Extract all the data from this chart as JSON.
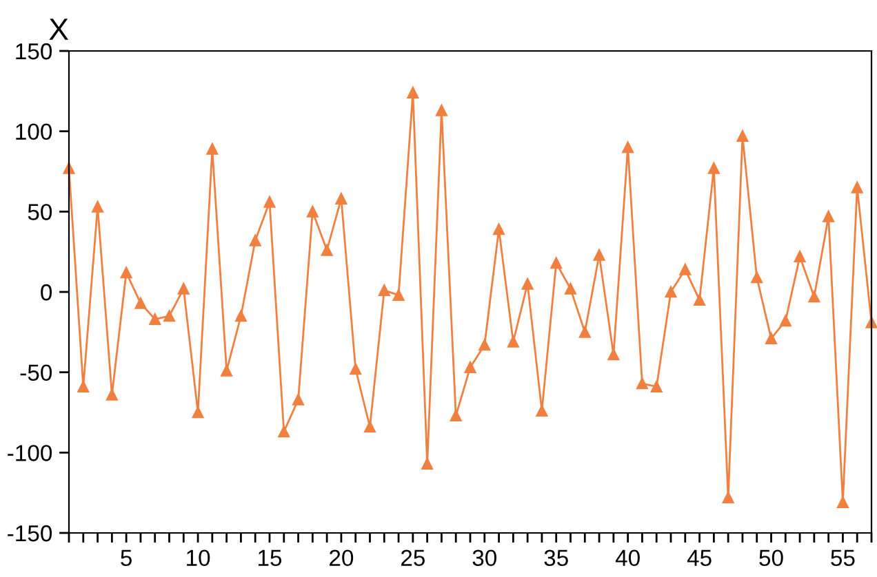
{
  "chart_data": {
    "type": "line",
    "title": "X",
    "x": [
      1,
      2,
      3,
      4,
      5,
      6,
      7,
      8,
      9,
      10,
      11,
      12,
      13,
      14,
      15,
      16,
      17,
      18,
      19,
      20,
      21,
      22,
      23,
      24,
      25,
      26,
      27,
      28,
      29,
      30,
      31,
      32,
      33,
      34,
      35,
      36,
      37,
      38,
      39,
      40,
      41,
      42,
      43,
      44,
      45,
      46,
      47,
      48,
      49,
      50,
      51,
      52,
      53,
      54,
      55,
      56,
      57
    ],
    "series": [
      {
        "color": "#f08040",
        "values": [
          77,
          -59,
          53,
          -64,
          12,
          -7,
          -17,
          -15,
          2,
          -75,
          89,
          -49,
          -15,
          32,
          56,
          -87,
          -67,
          50,
          26,
          58,
          -48,
          -84,
          1,
          -2,
          124,
          -107,
          113,
          -77,
          -47,
          -33,
          39,
          -31,
          5,
          -74,
          18,
          2,
          -25,
          23,
          -39,
          90,
          -57,
          -59,
          0,
          14,
          -5,
          77,
          -128,
          97,
          9,
          -29,
          -18,
          22,
          -3,
          47,
          -131,
          65,
          -19
        ]
      }
    ],
    "marker": "triangle",
    "line_style": "solid",
    "grid": false,
    "legend": false,
    "xlim": [
      1,
      57
    ],
    "ylim": [
      -150,
      150
    ],
    "yticks": [
      -150,
      -100,
      -50,
      0,
      50,
      100,
      150
    ],
    "xticks": [
      {
        "value": 1,
        "label": null
      },
      {
        "value": 2,
        "label": null
      },
      {
        "value": 3,
        "label": null
      },
      {
        "value": 4,
        "label": null
      },
      5,
      {
        "value": 6,
        "label": null
      },
      {
        "value": 7,
        "label": null
      },
      {
        "value": 8,
        "label": null
      },
      {
        "value": 9,
        "label": null
      },
      10,
      {
        "value": 11,
        "label": null
      },
      {
        "value": 12,
        "label": null
      },
      {
        "value": 13,
        "label": null
      },
      {
        "value": 14,
        "label": null
      },
      15,
      {
        "value": 16,
        "label": null
      },
      {
        "value": 17,
        "label": null
      },
      {
        "value": 18,
        "label": null
      },
      {
        "value": 19,
        "label": null
      },
      20,
      {
        "value": 21,
        "label": null
      },
      {
        "value": 22,
        "label": null
      },
      {
        "value": 23,
        "label": null
      },
      {
        "value": 24,
        "label": null
      },
      25,
      {
        "value": 26,
        "label": null
      },
      {
        "value": 27,
        "label": null
      },
      {
        "value": 28,
        "label": null
      },
      {
        "value": 29,
        "label": null
      },
      30,
      {
        "value": 31,
        "label": null
      },
      {
        "value": 32,
        "label": null
      },
      {
        "value": 33,
        "label": null
      },
      {
        "value": 34,
        "label": null
      },
      35,
      {
        "value": 36,
        "label": null
      },
      {
        "value": 37,
        "label": null
      },
      {
        "value": 38,
        "label": null
      },
      {
        "value": 39,
        "label": null
      },
      40,
      {
        "value": 41,
        "label": null
      },
      {
        "value": 42,
        "label": null
      },
      {
        "value": 43,
        "label": null
      },
      {
        "value": 44,
        "label": null
      },
      45,
      {
        "value": 46,
        "label": null
      },
      {
        "value": 47,
        "label": null
      },
      {
        "value": 48,
        "label": null
      },
      {
        "value": 49,
        "label": null
      },
      50,
      {
        "value": 51,
        "label": null
      },
      {
        "value": 52,
        "label": null
      },
      {
        "value": 53,
        "label": null
      },
      {
        "value": 54,
        "label": null
      },
      55,
      {
        "value": 56,
        "label": null
      },
      {
        "value": 57,
        "label": null
      }
    ]
  }
}
